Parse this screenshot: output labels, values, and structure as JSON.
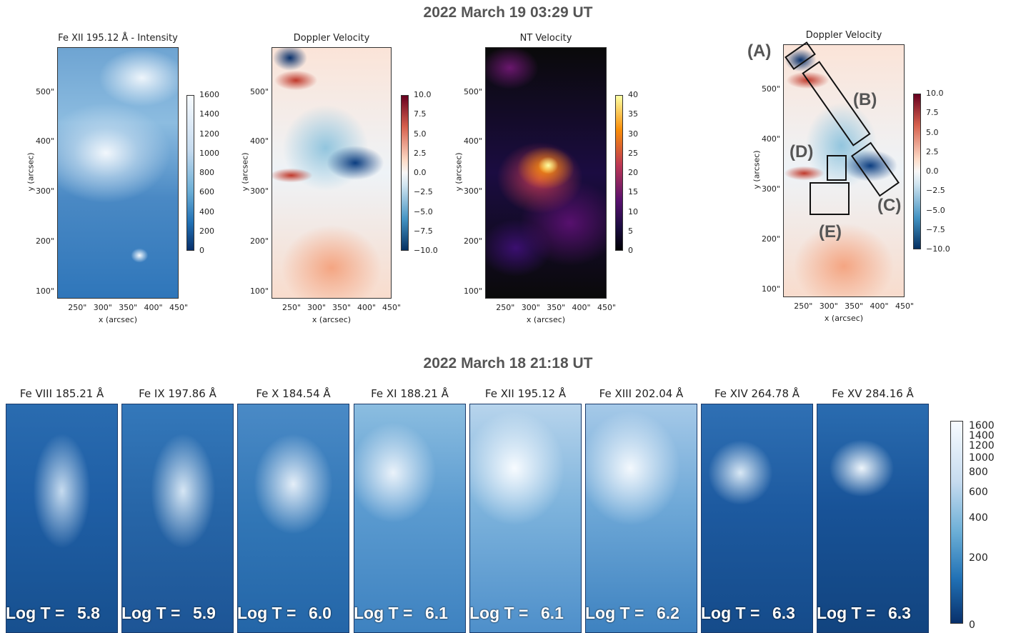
{
  "top_title": "2022 March 19 03:29 UT",
  "bottom_title": "2022 March 18 21:18 UT",
  "chart_data": [
    {
      "type": "heatmap",
      "title": "Fe XII 195.12 Å - Intensity",
      "xlabel": "x (arcsec)",
      "ylabel": "y (arcsec)",
      "xticks": [
        "250\"",
        "300\"",
        "350\"",
        "400\"",
        "450\""
      ],
      "yticks": [
        "500\"",
        "400\"",
        "300\"",
        "200\"",
        "100\""
      ],
      "xlim": [
        210,
        450
      ],
      "ylim": [
        85,
        590
      ],
      "colorbar_ticks": [
        "1600",
        "1400",
        "1200",
        "1000",
        "800",
        "600",
        "400",
        "200",
        "0"
      ],
      "colorbar_range": [
        0,
        1600
      ],
      "colormap": "Blues_r"
    },
    {
      "type": "heatmap",
      "title": "Doppler Velocity",
      "xlabel": "x (arcsec)",
      "ylabel": "y (arcsec)",
      "xticks": [
        "250\"",
        "300\"",
        "350\"",
        "400\"",
        "450\""
      ],
      "yticks": [
        "500\"",
        "400\"",
        "300\"",
        "200\"",
        "100\""
      ],
      "xlim": [
        210,
        450
      ],
      "ylim": [
        85,
        590
      ],
      "colorbar_ticks": [
        "10.0",
        "7.5",
        "5.0",
        "2.5",
        "0.0",
        "−2.5",
        "−5.0",
        "−7.5",
        "−10.0"
      ],
      "colorbar_range": [
        -10,
        10
      ],
      "colormap": "RdBu_r"
    },
    {
      "type": "heatmap",
      "title": "NT Velocity",
      "xlabel": "x (arcsec)",
      "ylabel": "y (arcsec)",
      "xticks": [
        "250\"",
        "300\"",
        "350\"",
        "400\"",
        "450\""
      ],
      "yticks": [
        "500\"",
        "400\"",
        "300\"",
        "200\"",
        "100\""
      ],
      "xlim": [
        210,
        450
      ],
      "ylim": [
        85,
        590
      ],
      "colorbar_ticks": [
        "40",
        "35",
        "30",
        "25",
        "20",
        "15",
        "10",
        "5",
        "0"
      ],
      "colorbar_range": [
        0,
        40
      ],
      "colormap": "inferno"
    },
    {
      "type": "heatmap",
      "title": "Doppler Velocity",
      "xlabel": "x (arcsec)",
      "ylabel": "y (arcsec)",
      "xticks": [
        "250\"",
        "300\"",
        "350\"",
        "400\"",
        "450\""
      ],
      "yticks": [
        "500\"",
        "400\"",
        "300\"",
        "200\"",
        "100\""
      ],
      "xlim": [
        210,
        450
      ],
      "ylim": [
        85,
        590
      ],
      "colorbar_ticks": [
        "10.0",
        "7.5",
        "5.0",
        "2.5",
        "0.0",
        "−2.5",
        "−5.0",
        "−7.5",
        "−10.0"
      ],
      "colorbar_range": [
        -10,
        10
      ],
      "colormap": "RdBu_r",
      "annotations": [
        "(A)",
        "(B)",
        "(C)",
        "(D)",
        "(E)"
      ]
    }
  ],
  "strips": [
    {
      "title": "Fe VIII 185.21 Å",
      "logt_label": "Log T =",
      "logt": "5.8"
    },
    {
      "title": "Fe IX 197.86 Å",
      "logt_label": "Log T =",
      "logt": "5.9"
    },
    {
      "title": "Fe X 184.54 Å",
      "logt_label": "Log T =",
      "logt": "6.0"
    },
    {
      "title": "Fe XI 188.21 Å",
      "logt_label": "Log T =",
      "logt": "6.1"
    },
    {
      "title": "Fe XII 195.12 Å",
      "logt_label": "Log T =",
      "logt": "6.1"
    },
    {
      "title": "Fe XIII 202.04 Å",
      "logt_label": "Log T =",
      "logt": "6.2"
    },
    {
      "title": "Fe XIV 264.78 Å",
      "logt_label": "Log T =",
      "logt": "6.3"
    },
    {
      "title": "Fe XV 284.16 Å",
      "logt_label": "Log T =",
      "logt": "6.3"
    }
  ],
  "bottom_colorbar_ticks": [
    "1600",
    "1400",
    "1200",
    "1000",
    "800",
    "600",
    "400",
    "200",
    "0"
  ],
  "colors": {
    "title_gray": "#555555",
    "deep_blue": "#08306b",
    "light_blue": "#deebf7",
    "red": "#b2182b"
  }
}
